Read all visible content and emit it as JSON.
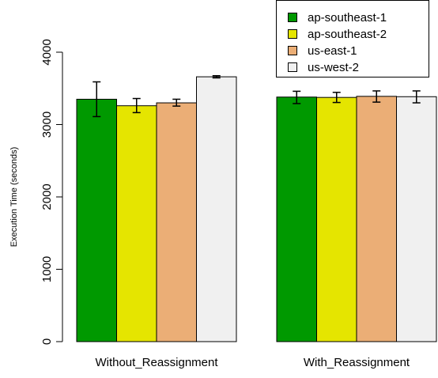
{
  "chart_data": {
    "type": "bar",
    "ylabel": "Execution Time (seconds)",
    "xlabel": "",
    "ylim": [
      0,
      4000
    ],
    "yticks": [
      "0",
      "1000",
      "2000",
      "3000",
      "4000"
    ],
    "categories": [
      "Without_Reassignment",
      "With_Reassignment"
    ],
    "series": [
      {
        "name": "ap-southeast-1",
        "color": "#009900",
        "values": [
          3350,
          3380
        ],
        "error_low": [
          3110,
          3290
        ],
        "error_high": [
          3590,
          3460
        ]
      },
      {
        "name": "ap-southeast-2",
        "color": "#e5e500",
        "values": [
          3260,
          3375
        ],
        "error_low": [
          3165,
          3305
        ],
        "error_high": [
          3360,
          3445
        ]
      },
      {
        "name": "us-east-1",
        "color": "#ebae76",
        "values": [
          3300,
          3390
        ],
        "error_low": [
          3255,
          3310
        ],
        "error_high": [
          3350,
          3465
        ]
      },
      {
        "name": "us-west-2",
        "color": "#f0f0f0",
        "values": [
          3660,
          3385
        ],
        "error_low": [
          3645,
          3300
        ],
        "error_high": [
          3675,
          3465
        ]
      }
    ],
    "legend_position": "top-right",
    "grid": false
  }
}
